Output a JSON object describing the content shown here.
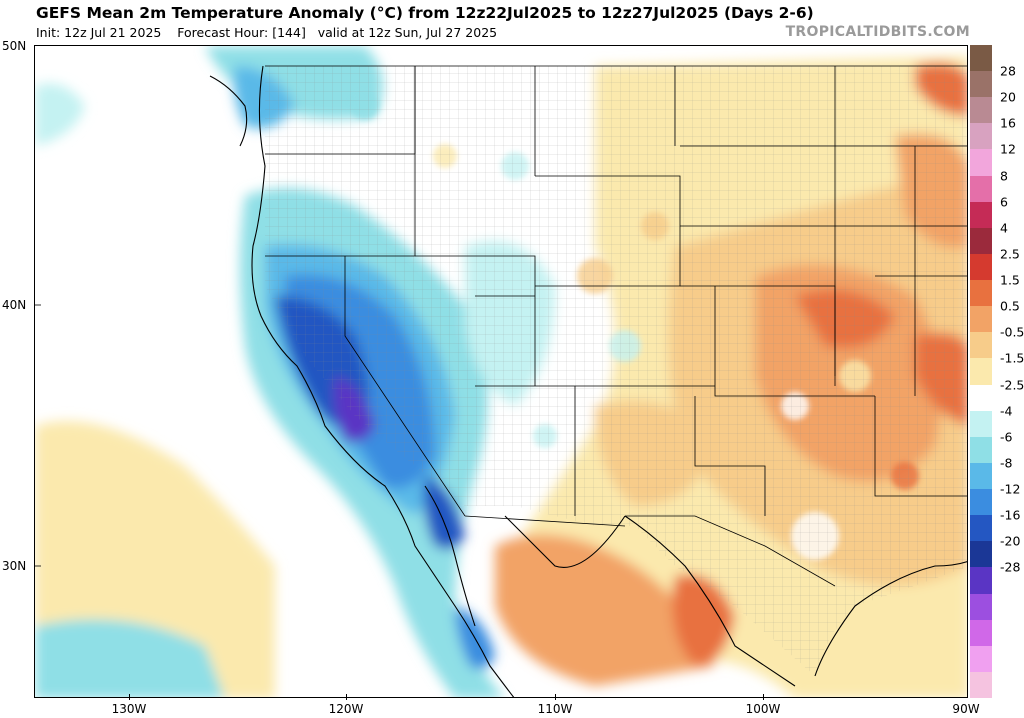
{
  "header": {
    "title": "GEFS Mean 2m Temperature Anomaly (°C) from 12z22Jul2025 to 12z27Jul2025 (Days 2-6)",
    "init": "Init: 12z Jul 21 2025",
    "forecast_hour": "Forecast Hour: [144]",
    "valid": "valid at 12z Sun, Jul 27 2025",
    "brand": "TROPICALTIDBITS.COM"
  },
  "axes": {
    "lat_labels": [
      "50N",
      "40N",
      "30N"
    ],
    "lon_labels": [
      "130W",
      "120W",
      "110W",
      "100W",
      "90W"
    ]
  },
  "colorbar": {
    "labels": [
      "28",
      "20",
      "16",
      "12",
      "8",
      "6",
      "4",
      "2.5",
      "1.5",
      "0.5",
      "-0.5",
      "-1.5",
      "-2.5",
      "-4",
      "-6",
      "-8",
      "-12",
      "-16",
      "-20",
      "-28"
    ],
    "colors": [
      "#7a5a45",
      "#9a7268",
      "#b98a93",
      "#d8a2c0",
      "#f2a6dc",
      "#e46fa9",
      "#c52b56",
      "#9b2a3c",
      "#d53a2f",
      "#e8713f",
      "#f2a366",
      "#f7cc8a",
      "#fbe9ad",
      "#ffffff",
      "#c4f2f2",
      "#8fdfe6",
      "#5ab9e8",
      "#3b8de0",
      "#2457c2",
      "#1b3796",
      "#5a35c4",
      "#9c4fe0",
      "#d068e8",
      "#f0a0f0",
      "#f5c3e0"
    ]
  },
  "legend_colors": {
    "warm_strong": "#e8713f",
    "warm_mid": "#f2a366",
    "warm_light": "#fbe9ad",
    "cool_light": "#8fdfe6",
    "cool_mid": "#5ab9e8",
    "cool_strong": "#2457c2",
    "cool_extreme": "#5a35c4"
  }
}
